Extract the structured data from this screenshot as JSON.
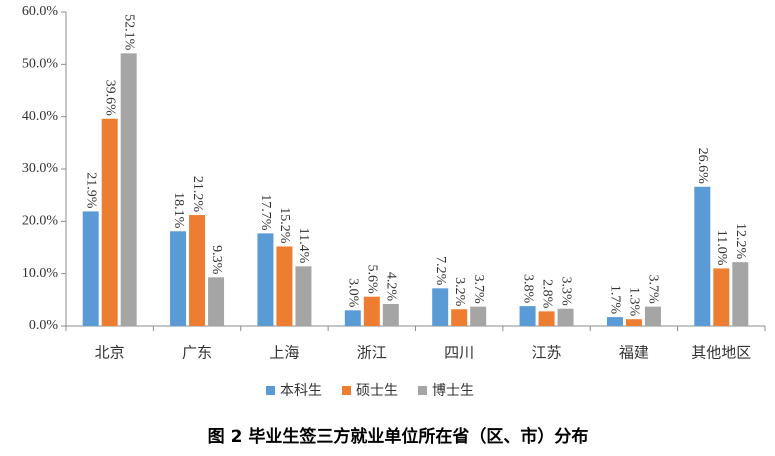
{
  "chart_data": {
    "type": "bar",
    "title": "图 2 毕业生签三方就业单位所在省（区、市）分布",
    "categories": [
      "北京",
      "广东",
      "上海",
      "浙江",
      "四川",
      "江苏",
      "福建",
      "其他地区"
    ],
    "series": [
      {
        "name": "本科生",
        "color": "#5b9bd5",
        "values": [
          21.9,
          18.1,
          17.7,
          3.0,
          7.2,
          3.8,
          1.7,
          26.6
        ],
        "value_labels": [
          "21.9%",
          "18.1%",
          "17.7%",
          "3.0%",
          "7.2%",
          "3.8%",
          "1.7%",
          "26.6%"
        ]
      },
      {
        "name": "硕士生",
        "color": "#ed7d31",
        "values": [
          39.6,
          21.2,
          15.2,
          5.6,
          3.2,
          2.8,
          1.3,
          11.0
        ],
        "value_labels": [
          "39.6%",
          "21.2%",
          "15.2%",
          "5.6%",
          "3.2%",
          "2.8%",
          "1.3%",
          "11.0%"
        ]
      },
      {
        "name": "博士生",
        "color": "#a5a5a5",
        "values": [
          52.1,
          9.3,
          11.4,
          4.2,
          3.7,
          3.3,
          3.7,
          12.2
        ],
        "value_labels": [
          "52.1%",
          "9.3%",
          "11.4%",
          "4.2%",
          "3.7%",
          "3.3%",
          "3.7%",
          "12.2%"
        ]
      }
    ],
    "ylim": [
      0,
      60
    ],
    "yticks": [
      {
        "value": 0,
        "label": "0.0%"
      },
      {
        "value": 10,
        "label": "10.0%"
      },
      {
        "value": 20,
        "label": "20.0%"
      },
      {
        "value": 30,
        "label": "30.0%"
      },
      {
        "value": 40,
        "label": "40.0%"
      },
      {
        "value": 50,
        "label": "50.0%"
      },
      {
        "value": 60,
        "label": "60.0%"
      }
    ],
    "grid": false
  }
}
